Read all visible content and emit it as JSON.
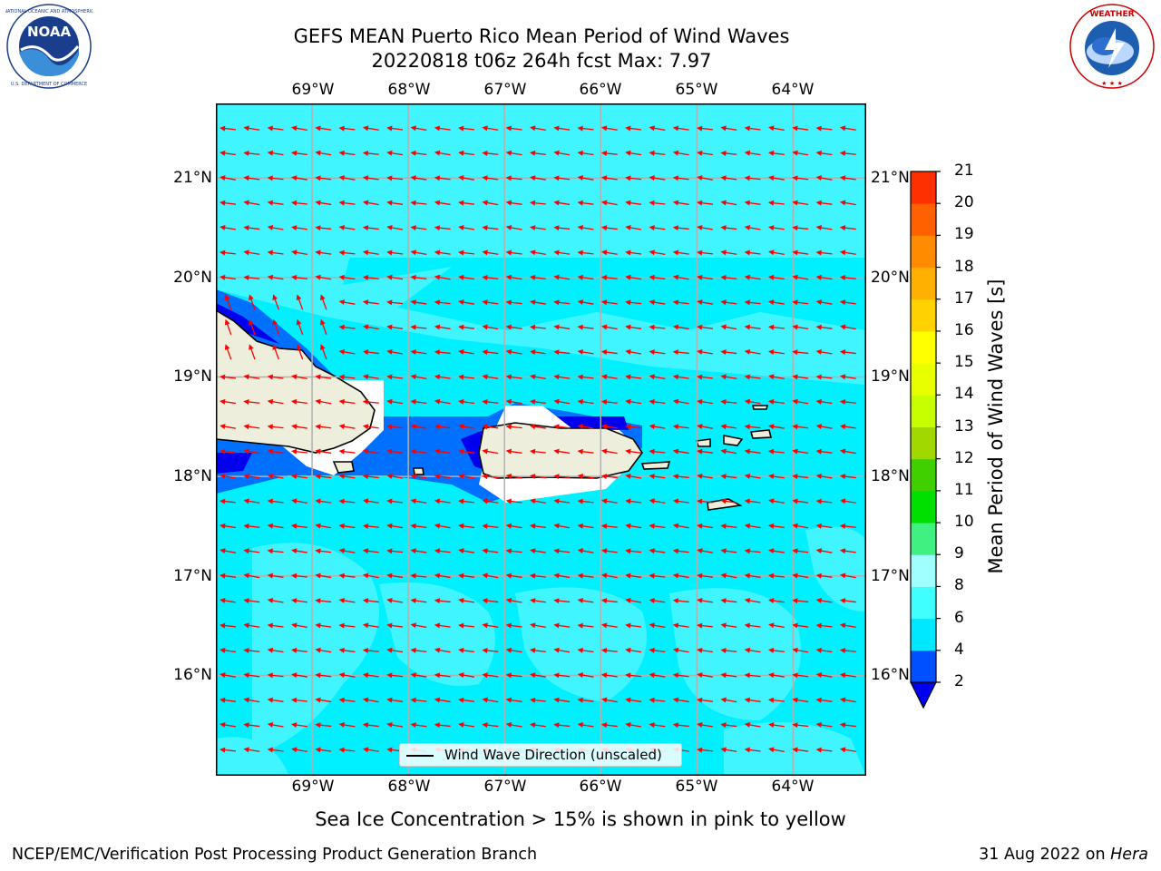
{
  "title": {
    "line1": "GEFS MEAN Puerto Rico Mean Period of Wind Waves",
    "line2": "20220818 t06z 264h fcst   Max: 7.97"
  },
  "logos": {
    "left": "noaa-logo",
    "right": "nws-logo"
  },
  "map": {
    "lon_ticks": [
      "69°W",
      "68°W",
      "67°W",
      "66°W",
      "65°W",
      "64°W"
    ],
    "lat_ticks": [
      "21°N",
      "20°N",
      "19°N",
      "18°N",
      "17°N",
      "16°N"
    ],
    "extent": {
      "lon": [
        -70.0,
        -63.25
      ],
      "lat": [
        15.0,
        21.75
      ]
    },
    "ocean_color": "#00f0ff",
    "light_ocean_color": "#40f5ff",
    "land_color": "#eeeedd",
    "wave_arrow_color": "#ff0000",
    "predominant_direction": "toward west (easterly waves)"
  },
  "colorbar": {
    "title": "Mean Period of Wind Waves [s]",
    "levels": [
      2,
      4,
      6,
      8,
      9,
      10,
      11,
      12,
      13,
      14,
      15,
      16,
      17,
      18,
      19,
      20,
      21
    ],
    "colors": [
      "#0050ff",
      "#00e8ff",
      "#40ffff",
      "#a0ffff",
      "#40f080",
      "#00e000",
      "#40d000",
      "#a0d800",
      "#c8ff00",
      "#e8ff00",
      "#ffff00",
      "#ffd200",
      "#ffb000",
      "#ff8c00",
      "#ff6000",
      "#ff3000",
      "#ff0000"
    ],
    "under_color": "#0000ee"
  },
  "legend": {
    "label": "Wind Wave Direction (unscaled)"
  },
  "note": "Sea Ice Concentration > 15% is shown in pink to yellow",
  "footer": {
    "left": "NCEP/EMC/Verification Post Processing Product Generation Branch",
    "right_date": "31 Aug 2022 on ",
    "right_host": "Hera"
  }
}
